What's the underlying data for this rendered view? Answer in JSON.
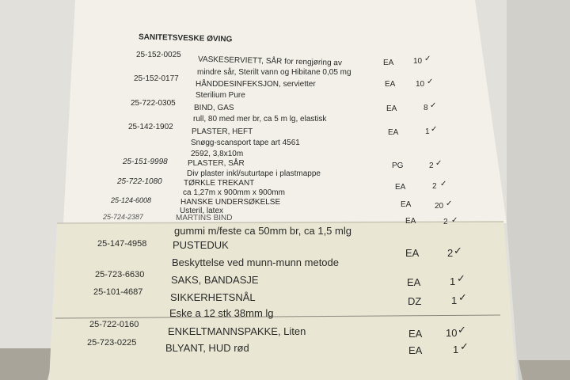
{
  "title": "SANITETSVESKE ØVING",
  "items": [
    {
      "code": "25-152-0025",
      "name": "VASKESERVIETT, SÅR for rengjøring av",
      "detail": "mindre sår, Sterilt vann og Hibitane 0,05 mg",
      "unit": "EA",
      "qty": "10",
      "check": "✓"
    },
    {
      "code": "25-152-0177",
      "name": "HÅNDDESINFEKSJON, servietter",
      "detail": "Sterilium Pure",
      "unit": "EA",
      "qty": "10",
      "check": "✓"
    },
    {
      "code": "25-722-0305",
      "name": "BIND, GAS",
      "detail": "rull, 80 med mer br, ca 5 m lg, elastisk",
      "unit": "EA",
      "qty": "8",
      "check": "✓"
    },
    {
      "code": "25-142-1902",
      "name": "PLASTER, HEFT",
      "detail": "Snøgg-scansport tape art 4561",
      "detail2": "2592, 3,8x10m",
      "unit": "EA",
      "qty": "1",
      "check": "✓"
    },
    {
      "code": "25-151-9998",
      "name": "PLASTER, SÅR",
      "detail": "Div plaster inkl/suturtape i plastmappe",
      "unit": "PG",
      "qty": "2",
      "check": "✓"
    },
    {
      "code": "25-722-1080",
      "name": "TØRKLE TREKANT",
      "detail": "ca 1,27m x 900mm x 900mm",
      "unit": "EA",
      "qty": "2",
      "check": "✓"
    },
    {
      "code": "25-124-6008",
      "name": "HANSKE UNDERSØKELSE",
      "detail": "Usteril, latex",
      "unit": "EA",
      "qty": "20",
      "check": "✓"
    },
    {
      "code": "25-724-2387",
      "name": "MARTINS BIND",
      "detail": "gummi m/feste ca 50mm br, ca 1,5 mlg",
      "unit": "EA",
      "qty": "2",
      "check": "✓"
    },
    {
      "code": "25-147-4958",
      "name": "PUSTEDUK",
      "detail": "Beskyttelse ved munn-munn metode",
      "unit": "EA",
      "qty": "2",
      "check": "✓"
    },
    {
      "code": "25-723-6630",
      "name": "SAKS, BANDASJE",
      "unit": "EA",
      "qty": "1",
      "check": "✓"
    },
    {
      "code": "25-101-4687",
      "name": "SIKKERHETSNÅL",
      "detail": "Eske a 12 stk 38mm lg",
      "unit": "DZ",
      "qty": "1",
      "check": "✓"
    },
    {
      "code": "25-722-0160",
      "name": "ENKELTMANNSPAKKE, Liten",
      "unit": "EA",
      "qty": "10",
      "check": "✓"
    },
    {
      "code": "25-723-0225",
      "name": "BLYANT, HUD rød",
      "unit": "EA",
      "qty": "1",
      "check": "✓"
    }
  ]
}
